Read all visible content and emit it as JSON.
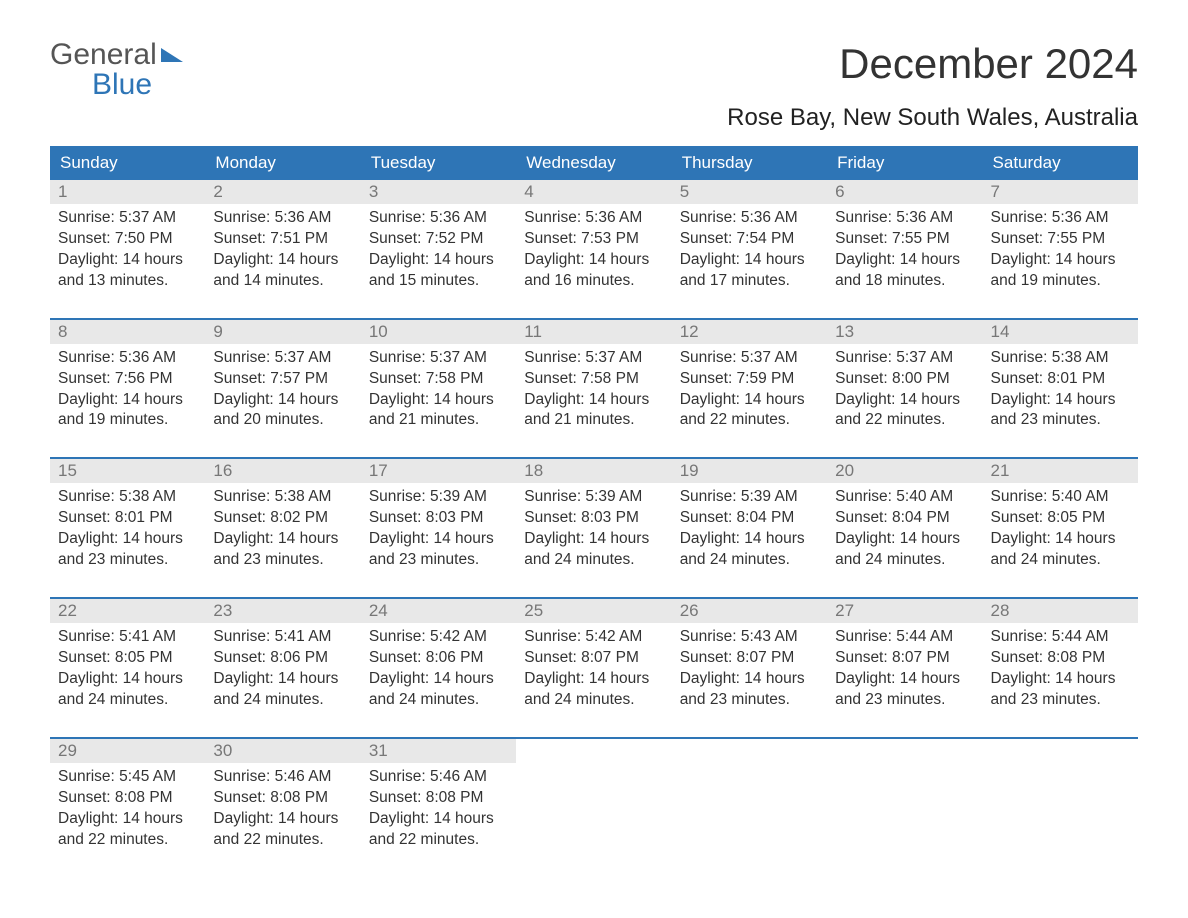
{
  "logo": {
    "line1": "General",
    "line2": "Blue"
  },
  "header": {
    "month_title": "December 2024",
    "location": "Rose Bay, New South Wales, Australia"
  },
  "colors": {
    "accent": "#2e75b6",
    "header_text": "#ffffff",
    "daynum_bg": "#e8e8e8",
    "daynum_text": "#777777",
    "body_text": "#333333",
    "background": "#ffffff"
  },
  "typography": {
    "month_title_fontsize": 42,
    "location_fontsize": 24,
    "dayheader_fontsize": 17,
    "body_fontsize": 15.5
  },
  "day_headers": [
    "Sunday",
    "Monday",
    "Tuesday",
    "Wednesday",
    "Thursday",
    "Friday",
    "Saturday"
  ],
  "labels": {
    "sunrise": "Sunrise:",
    "sunset": "Sunset:",
    "daylight": "Daylight:"
  },
  "weeks": [
    [
      {
        "n": "1",
        "sunrise": "5:37 AM",
        "sunset": "7:50 PM",
        "daylight": "14 hours and 13 minutes."
      },
      {
        "n": "2",
        "sunrise": "5:36 AM",
        "sunset": "7:51 PM",
        "daylight": "14 hours and 14 minutes."
      },
      {
        "n": "3",
        "sunrise": "5:36 AM",
        "sunset": "7:52 PM",
        "daylight": "14 hours and 15 minutes."
      },
      {
        "n": "4",
        "sunrise": "5:36 AM",
        "sunset": "7:53 PM",
        "daylight": "14 hours and 16 minutes."
      },
      {
        "n": "5",
        "sunrise": "5:36 AM",
        "sunset": "7:54 PM",
        "daylight": "14 hours and 17 minutes."
      },
      {
        "n": "6",
        "sunrise": "5:36 AM",
        "sunset": "7:55 PM",
        "daylight": "14 hours and 18 minutes."
      },
      {
        "n": "7",
        "sunrise": "5:36 AM",
        "sunset": "7:55 PM",
        "daylight": "14 hours and 19 minutes."
      }
    ],
    [
      {
        "n": "8",
        "sunrise": "5:36 AM",
        "sunset": "7:56 PM",
        "daylight": "14 hours and 19 minutes."
      },
      {
        "n": "9",
        "sunrise": "5:37 AM",
        "sunset": "7:57 PM",
        "daylight": "14 hours and 20 minutes."
      },
      {
        "n": "10",
        "sunrise": "5:37 AM",
        "sunset": "7:58 PM",
        "daylight": "14 hours and 21 minutes."
      },
      {
        "n": "11",
        "sunrise": "5:37 AM",
        "sunset": "7:58 PM",
        "daylight": "14 hours and 21 minutes."
      },
      {
        "n": "12",
        "sunrise": "5:37 AM",
        "sunset": "7:59 PM",
        "daylight": "14 hours and 22 minutes."
      },
      {
        "n": "13",
        "sunrise": "5:37 AM",
        "sunset": "8:00 PM",
        "daylight": "14 hours and 22 minutes."
      },
      {
        "n": "14",
        "sunrise": "5:38 AM",
        "sunset": "8:01 PM",
        "daylight": "14 hours and 23 minutes."
      }
    ],
    [
      {
        "n": "15",
        "sunrise": "5:38 AM",
        "sunset": "8:01 PM",
        "daylight": "14 hours and 23 minutes."
      },
      {
        "n": "16",
        "sunrise": "5:38 AM",
        "sunset": "8:02 PM",
        "daylight": "14 hours and 23 minutes."
      },
      {
        "n": "17",
        "sunrise": "5:39 AM",
        "sunset": "8:03 PM",
        "daylight": "14 hours and 23 minutes."
      },
      {
        "n": "18",
        "sunrise": "5:39 AM",
        "sunset": "8:03 PM",
        "daylight": "14 hours and 24 minutes."
      },
      {
        "n": "19",
        "sunrise": "5:39 AM",
        "sunset": "8:04 PM",
        "daylight": "14 hours and 24 minutes."
      },
      {
        "n": "20",
        "sunrise": "5:40 AM",
        "sunset": "8:04 PM",
        "daylight": "14 hours and 24 minutes."
      },
      {
        "n": "21",
        "sunrise": "5:40 AM",
        "sunset": "8:05 PM",
        "daylight": "14 hours and 24 minutes."
      }
    ],
    [
      {
        "n": "22",
        "sunrise": "5:41 AM",
        "sunset": "8:05 PM",
        "daylight": "14 hours and 24 minutes."
      },
      {
        "n": "23",
        "sunrise": "5:41 AM",
        "sunset": "8:06 PM",
        "daylight": "14 hours and 24 minutes."
      },
      {
        "n": "24",
        "sunrise": "5:42 AM",
        "sunset": "8:06 PM",
        "daylight": "14 hours and 24 minutes."
      },
      {
        "n": "25",
        "sunrise": "5:42 AM",
        "sunset": "8:07 PM",
        "daylight": "14 hours and 24 minutes."
      },
      {
        "n": "26",
        "sunrise": "5:43 AM",
        "sunset": "8:07 PM",
        "daylight": "14 hours and 23 minutes."
      },
      {
        "n": "27",
        "sunrise": "5:44 AM",
        "sunset": "8:07 PM",
        "daylight": "14 hours and 23 minutes."
      },
      {
        "n": "28",
        "sunrise": "5:44 AM",
        "sunset": "8:08 PM",
        "daylight": "14 hours and 23 minutes."
      }
    ],
    [
      {
        "n": "29",
        "sunrise": "5:45 AM",
        "sunset": "8:08 PM",
        "daylight": "14 hours and 22 minutes."
      },
      {
        "n": "30",
        "sunrise": "5:46 AM",
        "sunset": "8:08 PM",
        "daylight": "14 hours and 22 minutes."
      },
      {
        "n": "31",
        "sunrise": "5:46 AM",
        "sunset": "8:08 PM",
        "daylight": "14 hours and 22 minutes."
      },
      null,
      null,
      null,
      null
    ]
  ]
}
